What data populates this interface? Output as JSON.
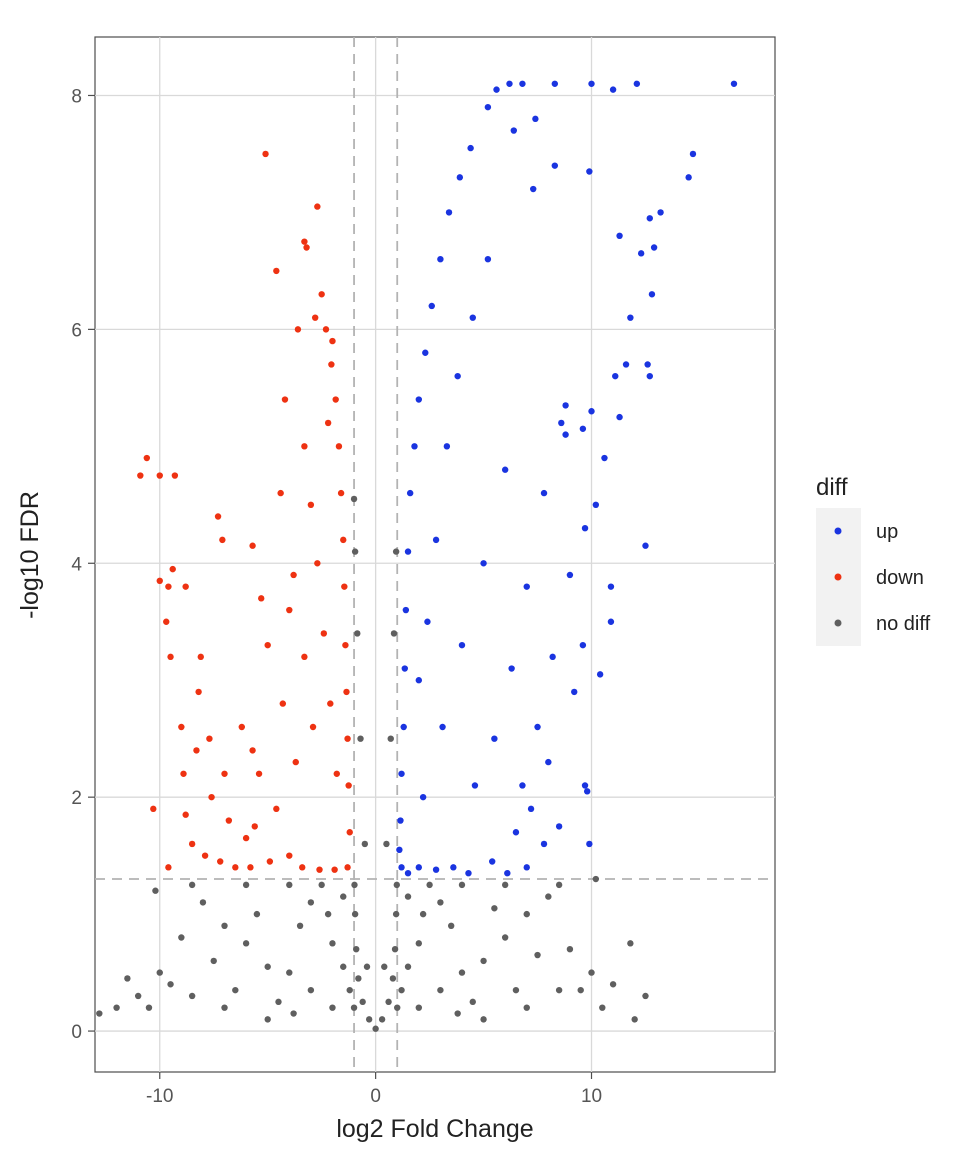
{
  "chart_data": {
    "type": "scatter",
    "title": "",
    "xlabel": "log2 Fold Change",
    "ylabel": "-log10 FDR",
    "xlim": [
      -13,
      18.5
    ],
    "ylim": [
      -0.35,
      8.5
    ],
    "x_ticks": [
      -10,
      0,
      10
    ],
    "y_ticks": [
      0,
      2,
      4,
      6,
      8
    ],
    "x_tick_labels": [
      "-10",
      "0",
      "10"
    ],
    "y_tick_labels": [
      "0",
      "2",
      "4",
      "6",
      "8"
    ],
    "grid": true,
    "background": "#ffffff",
    "grid_color": "#d9d9d9",
    "threshold_lines": {
      "x": [
        -1,
        1
      ],
      "y": [
        1.3
      ]
    },
    "legend": {
      "title": "diff",
      "position": "right",
      "entries": [
        {
          "label": "up",
          "color": "#1a34e0"
        },
        {
          "label": "down",
          "color": "#ee3212"
        },
        {
          "label": "no diff",
          "color": "#5f5f5f"
        }
      ]
    },
    "series": [
      {
        "name": "up",
        "color": "#1a34e0",
        "points": [
          [
            16.6,
            8.1
          ],
          [
            12.1,
            8.1
          ],
          [
            11.0,
            8.05
          ],
          [
            10.0,
            8.1
          ],
          [
            8.3,
            8.1
          ],
          [
            6.8,
            8.1
          ],
          [
            6.2,
            8.1
          ],
          [
            5.6,
            8.05
          ],
          [
            5.2,
            7.9
          ],
          [
            7.4,
            7.8
          ],
          [
            6.4,
            7.7
          ],
          [
            14.7,
            7.5
          ],
          [
            14.5,
            7.3
          ],
          [
            9.9,
            7.35
          ],
          [
            8.3,
            7.4
          ],
          [
            7.3,
            7.2
          ],
          [
            13.2,
            7.0
          ],
          [
            12.7,
            6.95
          ],
          [
            11.3,
            6.8
          ],
          [
            12.9,
            6.7
          ],
          [
            12.3,
            6.65
          ],
          [
            12.8,
            6.3
          ],
          [
            11.8,
            6.1
          ],
          [
            12.6,
            5.7
          ],
          [
            11.6,
            5.7
          ],
          [
            11.1,
            5.6
          ],
          [
            12.7,
            5.6
          ],
          [
            8.8,
            5.35
          ],
          [
            10.0,
            5.3
          ],
          [
            11.3,
            5.25
          ],
          [
            8.8,
            5.1
          ],
          [
            9.6,
            5.15
          ],
          [
            10.6,
            4.9
          ],
          [
            10.2,
            4.5
          ],
          [
            9.7,
            4.3
          ],
          [
            12.5,
            4.15
          ],
          [
            10.9,
            3.8
          ],
          [
            10.9,
            3.5
          ],
          [
            9.6,
            3.3
          ],
          [
            10.4,
            3.05
          ],
          [
            9.7,
            2.1
          ],
          [
            9.9,
            1.6
          ],
          [
            9.8,
            2.05
          ],
          [
            8.5,
            1.75
          ],
          [
            7.8,
            1.6
          ],
          [
            7.0,
            1.4
          ],
          [
            6.1,
            1.35
          ],
          [
            5.4,
            1.45
          ],
          [
            4.3,
            1.35
          ],
          [
            3.6,
            1.4
          ],
          [
            2.8,
            1.38
          ],
          [
            2.0,
            1.4
          ],
          [
            1.5,
            1.35
          ],
          [
            1.2,
            1.4
          ],
          [
            1.1,
            1.55
          ],
          [
            1.15,
            1.8
          ],
          [
            1.2,
            2.2
          ],
          [
            1.3,
            2.6
          ],
          [
            1.35,
            3.1
          ],
          [
            1.4,
            3.6
          ],
          [
            1.5,
            4.1
          ],
          [
            1.6,
            4.6
          ],
          [
            1.8,
            5.0
          ],
          [
            2.0,
            5.4
          ],
          [
            2.3,
            5.8
          ],
          [
            2.6,
            6.2
          ],
          [
            3.0,
            6.6
          ],
          [
            3.4,
            7.0
          ],
          [
            3.9,
            7.3
          ],
          [
            4.4,
            7.55
          ],
          [
            2.0,
            3.0
          ],
          [
            2.4,
            3.5
          ],
          [
            2.8,
            4.2
          ],
          [
            3.3,
            5.0
          ],
          [
            3.8,
            5.6
          ],
          [
            4.5,
            6.1
          ],
          [
            5.2,
            6.6
          ],
          [
            2.2,
            2.0
          ],
          [
            3.1,
            2.6
          ],
          [
            4.0,
            3.3
          ],
          [
            5.0,
            4.0
          ],
          [
            6.0,
            4.8
          ],
          [
            5.5,
            2.5
          ],
          [
            6.3,
            3.1
          ],
          [
            7.0,
            3.8
          ],
          [
            7.8,
            4.6
          ],
          [
            8.6,
            5.2
          ],
          [
            6.8,
            2.1
          ],
          [
            7.5,
            2.6
          ],
          [
            8.2,
            3.2
          ],
          [
            9.0,
            3.9
          ],
          [
            6.5,
            1.7
          ],
          [
            7.2,
            1.9
          ],
          [
            8.0,
            2.3
          ],
          [
            9.2,
            2.9
          ],
          [
            4.6,
            2.1
          ]
        ]
      },
      {
        "name": "down",
        "color": "#ee3212",
        "points": [
          [
            -5.1,
            7.5
          ],
          [
            -2.7,
            7.05
          ],
          [
            -3.3,
            6.75
          ],
          [
            -3.2,
            6.7
          ],
          [
            -4.6,
            6.5
          ],
          [
            -2.5,
            6.3
          ],
          [
            -2.8,
            6.1
          ],
          [
            -3.6,
            6.0
          ],
          [
            -2.0,
            5.9
          ],
          [
            -4.2,
            5.4
          ],
          [
            -2.2,
            5.2
          ],
          [
            -10.6,
            4.9
          ],
          [
            -10.9,
            4.75
          ],
          [
            -10.0,
            4.75
          ],
          [
            -9.3,
            4.75
          ],
          [
            -7.3,
            4.4
          ],
          [
            -7.1,
            4.2
          ],
          [
            -5.7,
            4.15
          ],
          [
            -10.0,
            3.85
          ],
          [
            -9.4,
            3.95
          ],
          [
            -9.6,
            3.8
          ],
          [
            -8.8,
            3.8
          ],
          [
            -9.7,
            3.5
          ],
          [
            -5.3,
            3.7
          ],
          [
            -4.0,
            3.6
          ],
          [
            -9.5,
            3.2
          ],
          [
            -8.1,
            3.2
          ],
          [
            -9.0,
            2.6
          ],
          [
            -8.2,
            2.9
          ],
          [
            -7.7,
            2.5
          ],
          [
            -5.7,
            2.4
          ],
          [
            -8.8,
            1.85
          ],
          [
            -8.5,
            1.6
          ],
          [
            -7.9,
            1.5
          ],
          [
            -7.2,
            1.45
          ],
          [
            -6.5,
            1.4
          ],
          [
            -5.8,
            1.4
          ],
          [
            -4.9,
            1.45
          ],
          [
            -4.0,
            1.5
          ],
          [
            -3.4,
            1.4
          ],
          [
            -2.6,
            1.38
          ],
          [
            -1.9,
            1.38
          ],
          [
            -1.3,
            1.4
          ],
          [
            -1.2,
            1.7
          ],
          [
            -1.25,
            2.1
          ],
          [
            -1.3,
            2.5
          ],
          [
            -1.35,
            2.9
          ],
          [
            -1.4,
            3.3
          ],
          [
            -1.45,
            3.8
          ],
          [
            -1.5,
            4.2
          ],
          [
            -1.6,
            4.6
          ],
          [
            -1.7,
            5.0
          ],
          [
            -1.85,
            5.4
          ],
          [
            -2.05,
            5.7
          ],
          [
            -2.3,
            6.0
          ],
          [
            -1.8,
            2.2
          ],
          [
            -2.1,
            2.8
          ],
          [
            -2.4,
            3.4
          ],
          [
            -2.7,
            4.0
          ],
          [
            -3.0,
            4.5
          ],
          [
            -3.3,
            5.0
          ],
          [
            -2.9,
            2.6
          ],
          [
            -3.3,
            3.2
          ],
          [
            -3.8,
            3.9
          ],
          [
            -4.4,
            4.6
          ],
          [
            -3.7,
            2.3
          ],
          [
            -4.3,
            2.8
          ],
          [
            -5.0,
            3.3
          ],
          [
            -4.6,
            1.9
          ],
          [
            -5.4,
            2.2
          ],
          [
            -6.2,
            2.6
          ],
          [
            -10.3,
            1.9
          ],
          [
            -9.6,
            1.4
          ],
          [
            -8.9,
            2.2
          ],
          [
            -7.6,
            2.0
          ],
          [
            -6.8,
            1.8
          ],
          [
            -6.0,
            1.65
          ],
          [
            -8.3,
            2.4
          ],
          [
            -7.0,
            2.2
          ],
          [
            -5.6,
            1.75
          ]
        ]
      },
      {
        "name": "no diff",
        "color": "#5f5f5f",
        "points": [
          [
            0.0,
            0.02
          ],
          [
            -0.3,
            0.1
          ],
          [
            0.3,
            0.1
          ],
          [
            -0.6,
            0.25
          ],
          [
            0.6,
            0.25
          ],
          [
            -0.8,
            0.45
          ],
          [
            0.8,
            0.45
          ],
          [
            -0.9,
            0.7
          ],
          [
            0.9,
            0.7
          ],
          [
            -0.95,
            1.0
          ],
          [
            0.95,
            1.0
          ],
          [
            -0.98,
            1.25
          ],
          [
            0.98,
            1.25
          ],
          [
            -0.5,
            1.6
          ],
          [
            0.5,
            1.6
          ],
          [
            -0.7,
            2.5
          ],
          [
            0.7,
            2.5
          ],
          [
            -0.85,
            3.4
          ],
          [
            0.85,
            3.4
          ],
          [
            -0.95,
            4.1
          ],
          [
            0.95,
            4.1
          ],
          [
            -1.0,
            4.55
          ],
          [
            -2.0,
            0.2
          ],
          [
            2.0,
            0.2
          ],
          [
            -3.0,
            0.35
          ],
          [
            3.0,
            0.35
          ],
          [
            -4.0,
            0.5
          ],
          [
            4.0,
            0.5
          ],
          [
            -5.0,
            0.55
          ],
          [
            5.0,
            0.6
          ],
          [
            -6.0,
            0.75
          ],
          [
            6.0,
            0.8
          ],
          [
            -7.0,
            0.9
          ],
          [
            7.0,
            1.0
          ],
          [
            -8.0,
            1.1
          ],
          [
            8.0,
            1.15
          ],
          [
            -9.0,
            0.8
          ],
          [
            9.0,
            0.7
          ],
          [
            -10.0,
            0.5
          ],
          [
            10.0,
            0.5
          ],
          [
            -11.0,
            0.3
          ],
          [
            11.0,
            0.4
          ],
          [
            -12.0,
            0.2
          ],
          [
            12.5,
            0.3
          ],
          [
            -10.5,
            0.2
          ],
          [
            10.5,
            0.2
          ],
          [
            -8.5,
            1.25
          ],
          [
            8.5,
            1.25
          ],
          [
            -6.0,
            1.25
          ],
          [
            6.0,
            1.25
          ],
          [
            -4.0,
            1.25
          ],
          [
            4.0,
            1.25
          ],
          [
            -2.5,
            1.25
          ],
          [
            2.5,
            1.25
          ],
          [
            -1.5,
            1.15
          ],
          [
            1.5,
            1.15
          ],
          [
            -3.5,
            0.9
          ],
          [
            3.5,
            0.9
          ],
          [
            -5.5,
            1.0
          ],
          [
            5.5,
            1.05
          ],
          [
            -7.5,
            0.6
          ],
          [
            7.5,
            0.65
          ],
          [
            -9.5,
            0.4
          ],
          [
            9.5,
            0.35
          ],
          [
            -11.5,
            0.45
          ],
          [
            11.8,
            0.75
          ],
          [
            -1.2,
            0.35
          ],
          [
            1.2,
            0.35
          ],
          [
            -2.0,
            0.75
          ],
          [
            2.0,
            0.75
          ],
          [
            -3.0,
            1.1
          ],
          [
            3.0,
            1.1
          ],
          [
            -0.4,
            0.55
          ],
          [
            0.4,
            0.55
          ],
          [
            -1.5,
            0.55
          ],
          [
            1.5,
            0.55
          ],
          [
            -4.5,
            0.25
          ],
          [
            4.5,
            0.25
          ],
          [
            -6.5,
            0.35
          ],
          [
            6.5,
            0.35
          ],
          [
            -8.5,
            0.3
          ],
          [
            8.5,
            0.35
          ],
          [
            -10.2,
            1.2
          ],
          [
            10.2,
            1.3
          ],
          [
            -7.0,
            0.2
          ],
          [
            7.0,
            0.2
          ],
          [
            -5.0,
            0.1
          ],
          [
            5.0,
            0.1
          ],
          [
            -2.2,
            1.0
          ],
          [
            2.2,
            1.0
          ],
          [
            -1.0,
            0.2
          ],
          [
            1.0,
            0.2
          ],
          [
            -3.8,
            0.15
          ],
          [
            3.8,
            0.15
          ],
          [
            12.0,
            0.1
          ],
          [
            -12.8,
            0.15
          ]
        ]
      }
    ]
  }
}
